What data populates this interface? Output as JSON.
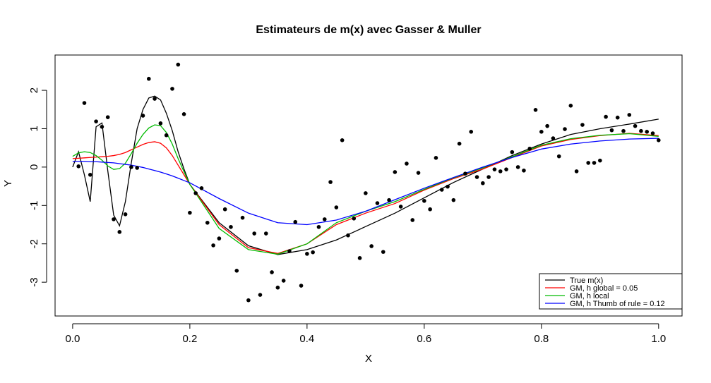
{
  "chart_data": {
    "type": "scatter",
    "title": "Estimateurs de m(x) avec Gasser & Muller",
    "x_label": "X",
    "y_label": "Y",
    "xlim": [
      -0.03,
      1.04
    ],
    "ylim": [
      -3.88,
      2.92
    ],
    "xticks": [
      {
        "value": 0,
        "label": "0.0"
      },
      0.2,
      0.4,
      0.6,
      0.8,
      {
        "value": 1,
        "label": "1.0"
      }
    ],
    "yticks": [
      -3,
      -2,
      -1,
      0,
      1,
      2
    ],
    "grid": false,
    "legend": "bottom-right",
    "point_color": "#000000",
    "x": [
      0.01,
      0.02,
      0.03,
      0.04,
      0.05,
      0.06,
      0.07,
      0.08,
      0.09,
      0.1,
      0.11,
      0.12,
      0.13,
      0.14,
      0.15,
      0.16,
      0.17,
      0.18,
      0.19,
      0.2,
      0.21,
      0.22,
      0.23,
      0.24,
      0.25,
      0.26,
      0.27,
      0.28,
      0.29,
      0.3,
      0.31,
      0.32,
      0.33,
      0.34,
      0.35,
      0.36,
      0.37,
      0.38,
      0.39,
      0.4,
      0.41,
      0.42,
      0.43,
      0.44,
      0.45,
      0.46,
      0.47,
      0.48,
      0.49,
      0.5,
      0.51,
      0.52,
      0.53,
      0.54,
      0.55,
      0.56,
      0.57,
      0.58,
      0.59,
      0.6,
      0.61,
      0.62,
      0.63,
      0.64,
      0.65,
      0.66,
      0.67,
      0.68,
      0.69,
      0.7,
      0.71,
      0.72,
      0.73,
      0.74,
      0.75,
      0.76,
      0.77,
      0.78,
      0.79,
      0.8,
      0.81,
      0.82,
      0.83,
      0.84,
      0.85,
      0.86,
      0.87,
      0.88,
      0.89,
      0.9,
      0.91,
      0.92,
      0.93,
      0.94,
      0.95,
      0.96,
      0.97,
      0.98,
      0.99,
      1.0
    ],
    "y": [
      0.02,
      1.67,
      -0.2,
      1.19,
      1.05,
      1.3,
      -1.36,
      -1.69,
      -1.23,
      0.0,
      -0.02,
      1.34,
      2.3,
      1.78,
      1.14,
      0.83,
      2.04,
      2.67,
      1.38,
      -1.19,
      -0.68,
      -0.55,
      -1.45,
      -2.04,
      -1.86,
      -1.1,
      -1.56,
      -2.7,
      -1.32,
      -3.47,
      -1.73,
      -3.33,
      -1.73,
      -2.74,
      -3.14,
      -2.96,
      -2.19,
      -1.43,
      -3.09,
      -2.26,
      -2.22,
      -1.56,
      -1.36,
      -0.39,
      -1.05,
      0.7,
      -1.78,
      -1.34,
      -2.37,
      -0.68,
      -2.06,
      -0.94,
      -2.21,
      -0.86,
      -0.13,
      -1.03,
      0.09,
      -1.38,
      -0.15,
      -0.88,
      -1.1,
      0.24,
      -0.59,
      -0.51,
      -0.86,
      0.61,
      -0.17,
      0.92,
      -0.26,
      -0.42,
      -0.26,
      -0.06,
      -0.11,
      -0.06,
      0.39,
      0.0,
      -0.09,
      0.48,
      1.49,
      0.92,
      1.07,
      0.75,
      0.28,
      0.99,
      1.6,
      -0.11,
      1.1,
      0.11,
      0.11,
      0.17,
      1.31,
      0.96,
      1.29,
      0.94,
      1.36,
      1.07,
      0.94,
      0.92,
      0.88,
      0.7
    ],
    "line_x": [
      0,
      0.01,
      0.02,
      0.03,
      0.04,
      0.05,
      0.06,
      0.07,
      0.08,
      0.09,
      0.1,
      0.11,
      0.12,
      0.13,
      0.14,
      0.15,
      0.16,
      0.17,
      0.18,
      0.19,
      0.2,
      0.25,
      0.3,
      0.35,
      0.4,
      0.45,
      0.5,
      0.55,
      0.6,
      0.65,
      0.7,
      0.75,
      0.8,
      0.85,
      0.9,
      0.95,
      1.0
    ],
    "series": [
      {
        "name": "True m(x)",
        "color": "#000000",
        "values": [
          0,
          0.4,
          -0.2,
          -0.9,
          1.05,
          1.15,
          -0.1,
          -1.25,
          -1.53,
          -0.9,
          0.1,
          1.0,
          1.5,
          1.8,
          1.85,
          1.75,
          1.4,
          0.95,
          0.4,
          -0.05,
          -0.45,
          -1.45,
          -2.05,
          -2.28,
          -2.15,
          -1.9,
          -1.55,
          -1.2,
          -0.8,
          -0.4,
          -0.05,
          0.3,
          0.6,
          0.85,
          1.0,
          1.12,
          1.25
        ]
      },
      {
        "name": "GM, h global = 0.05",
        "color": "#ff0000",
        "values": [
          0.22,
          0.23,
          0.24,
          0.25,
          0.26,
          0.27,
          0.28,
          0.3,
          0.33,
          0.38,
          0.45,
          0.52,
          0.59,
          0.64,
          0.66,
          0.62,
          0.5,
          0.3,
          0.05,
          -0.2,
          -0.45,
          -1.5,
          -2.1,
          -2.25,
          -2.0,
          -1.5,
          -1.2,
          -0.95,
          -0.6,
          -0.3,
          -0.05,
          0.25,
          0.55,
          0.72,
          0.82,
          0.88,
          0.82
        ]
      },
      {
        "name": "GM, h local",
        "color": "#00bb00",
        "values": [
          0.28,
          0.37,
          0.4,
          0.38,
          0.3,
          0.18,
          0.03,
          -0.06,
          -0.04,
          0.1,
          0.35,
          0.62,
          0.85,
          1.02,
          1.1,
          1.08,
          0.9,
          0.6,
          0.22,
          -0.12,
          -0.45,
          -1.6,
          -2.15,
          -2.27,
          -2.0,
          -1.45,
          -1.15,
          -0.9,
          -0.58,
          -0.28,
          -0.02,
          0.27,
          0.57,
          0.74,
          0.83,
          0.87,
          0.8
        ]
      },
      {
        "name": "GM, h Thumb of rule = 0.12",
        "color": "#0000ff",
        "values": [
          0.15,
          0.15,
          0.15,
          0.14,
          0.14,
          0.13,
          0.12,
          0.11,
          0.09,
          0.07,
          0.05,
          0.02,
          -0.01,
          -0.05,
          -0.09,
          -0.13,
          -0.18,
          -0.23,
          -0.29,
          -0.35,
          -0.41,
          -0.82,
          -1.2,
          -1.45,
          -1.5,
          -1.38,
          -1.15,
          -0.85,
          -0.55,
          -0.27,
          0.0,
          0.25,
          0.47,
          0.6,
          0.68,
          0.73,
          0.75
        ]
      }
    ]
  }
}
